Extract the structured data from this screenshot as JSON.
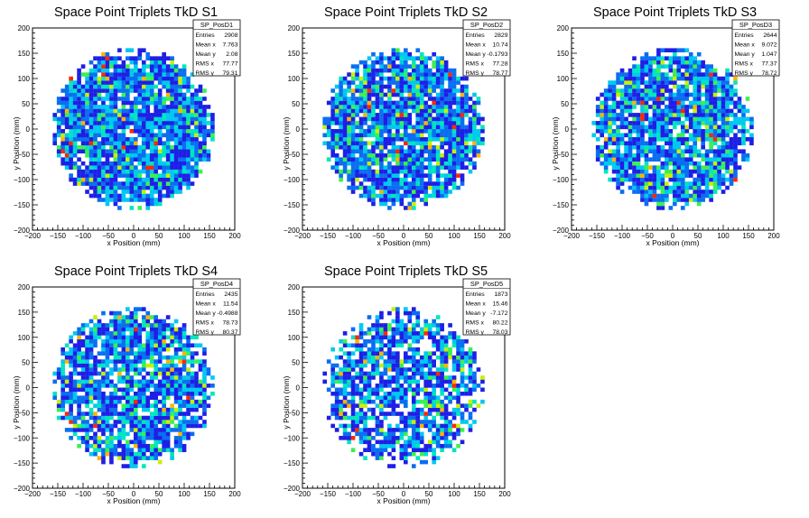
{
  "chart_data": [
    {
      "type": "heatmap",
      "title": "Space Point Triplets TkD S1",
      "xlabel": "x Position (mm)",
      "ylabel": "y Position (mm)",
      "xlim": [
        -200,
        200
      ],
      "ylim": [
        -200,
        200
      ],
      "xticks": [
        "−200",
        "−150",
        "−100",
        "−50",
        "0",
        "50",
        "100",
        "150",
        "200"
      ],
      "yticks": [
        "−200",
        "−150",
        "−100",
        "−50",
        "0",
        "50",
        "100",
        "150",
        "200"
      ],
      "stats": {
        "name": "SP_PosD1",
        "rows": [
          {
            "label": "Entries",
            "value": "2908"
          },
          {
            "label": "Mean x",
            "value": "7.763"
          },
          {
            "label": "Mean y",
            "value": "2.08"
          },
          {
            "label": "RMS x",
            "value": "77.77"
          },
          {
            "label": "RMS y",
            "value": "79.31"
          }
        ]
      },
      "entries": 2908,
      "mean_x": 7.763,
      "mean_y": 2.08,
      "rms_x": 77.77,
      "rms_y": 79.31,
      "bin_width_mm": 8,
      "radius_mm": 160,
      "density_level": 1.0
    },
    {
      "type": "heatmap",
      "title": "Space Point Triplets TkD S2",
      "xlabel": "x Position (mm)",
      "ylabel": "y Position (mm)",
      "xlim": [
        -200,
        200
      ],
      "ylim": [
        -200,
        200
      ],
      "xticks": [
        "−200",
        "−150",
        "−100",
        "−50",
        "0",
        "50",
        "100",
        "150",
        "200"
      ],
      "yticks": [
        "−200",
        "−150",
        "−100",
        "−50",
        "0",
        "50",
        "100",
        "150",
        "200"
      ],
      "stats": {
        "name": "SP_PosD2",
        "rows": [
          {
            "label": "Entries",
            "value": "2829"
          },
          {
            "label": "Mean x",
            "value": "10.74"
          },
          {
            "label": "Mean y",
            "value": "-0.1793"
          },
          {
            "label": "RMS x",
            "value": "77.28"
          },
          {
            "label": "RMS y",
            "value": "78.77"
          }
        ]
      },
      "entries": 2829,
      "mean_x": 10.74,
      "mean_y": -0.1793,
      "rms_x": 77.28,
      "rms_y": 78.77,
      "bin_width_mm": 8,
      "radius_mm": 160,
      "density_level": 0.97
    },
    {
      "type": "heatmap",
      "title": "Space Point Triplets TkD S3",
      "xlabel": "x Position (mm)",
      "ylabel": "y Position (mm)",
      "xlim": [
        -200,
        200
      ],
      "ylim": [
        -200,
        200
      ],
      "xticks": [
        "−200",
        "−150",
        "−100",
        "−50",
        "0",
        "50",
        "100",
        "150",
        "200"
      ],
      "yticks": [
        "−200",
        "−150",
        "−100",
        "−50",
        "0",
        "50",
        "100",
        "150",
        "200"
      ],
      "stats": {
        "name": "SP_PosD3",
        "rows": [
          {
            "label": "Entries",
            "value": "2644"
          },
          {
            "label": "Mean x",
            "value": "9.072"
          },
          {
            "label": "Mean y",
            "value": "1.047"
          },
          {
            "label": "RMS x",
            "value": "77.37"
          },
          {
            "label": "RMS y",
            "value": "78.72"
          }
        ]
      },
      "entries": 2644,
      "mean_x": 9.072,
      "mean_y": 1.047,
      "rms_x": 77.37,
      "rms_y": 78.72,
      "bin_width_mm": 8,
      "radius_mm": 160,
      "density_level": 0.91
    },
    {
      "type": "heatmap",
      "title": "Space Point Triplets TkD S4",
      "xlabel": "x Position (mm)",
      "ylabel": "y Position (mm)",
      "xlim": [
        -200,
        200
      ],
      "ylim": [
        -200,
        200
      ],
      "xticks": [
        "−200",
        "−150",
        "−100",
        "−50",
        "0",
        "50",
        "100",
        "150",
        "200"
      ],
      "yticks": [
        "−200",
        "−150",
        "−100",
        "−50",
        "0",
        "50",
        "100",
        "150",
        "200"
      ],
      "stats": {
        "name": "SP_PosD4",
        "rows": [
          {
            "label": "Entries",
            "value": "2435"
          },
          {
            "label": "Mean x",
            "value": "11.54"
          },
          {
            "label": "Mean y",
            "value": "-0.4988"
          },
          {
            "label": "RMS x",
            "value": "78.73"
          },
          {
            "label": "RMS y",
            "value": "80.37"
          }
        ]
      },
      "entries": 2435,
      "mean_x": 11.54,
      "mean_y": -0.4988,
      "rms_x": 78.73,
      "rms_y": 80.37,
      "bin_width_mm": 8,
      "radius_mm": 160,
      "density_level": 0.84
    },
    {
      "type": "heatmap",
      "title": "Space Point Triplets TkD S5",
      "xlabel": "x Position (mm)",
      "ylabel": "y Position (mm)",
      "xlim": [
        -200,
        200
      ],
      "ylim": [
        -200,
        200
      ],
      "xticks": [
        "−200",
        "−150",
        "−100",
        "−50",
        "0",
        "50",
        "100",
        "150",
        "200"
      ],
      "yticks": [
        "−200",
        "−150",
        "−100",
        "−50",
        "0",
        "50",
        "100",
        "150",
        "200"
      ],
      "stats": {
        "name": "SP_PosD5",
        "rows": [
          {
            "label": "Entries",
            "value": "1873"
          },
          {
            "label": "Mean x",
            "value": "15.46"
          },
          {
            "label": "Mean y",
            "value": "-7.172"
          },
          {
            "label": "RMS x",
            "value": "80.22"
          },
          {
            "label": "RMS y",
            "value": "78.03"
          }
        ]
      },
      "entries": 1873,
      "mean_x": 15.46,
      "mean_y": -7.172,
      "rms_x": 80.22,
      "rms_y": 78.03,
      "bin_width_mm": 8,
      "radius_mm": 160,
      "density_level": 0.65
    }
  ],
  "colors": {
    "palette": [
      "#1e1ee6",
      "#0a6ef0",
      "#00c8f0",
      "#00e6be",
      "#3cf050",
      "#c8f000",
      "#ffb400",
      "#ff2800"
    ],
    "frame": "#000000",
    "background": "#ffffff"
  }
}
